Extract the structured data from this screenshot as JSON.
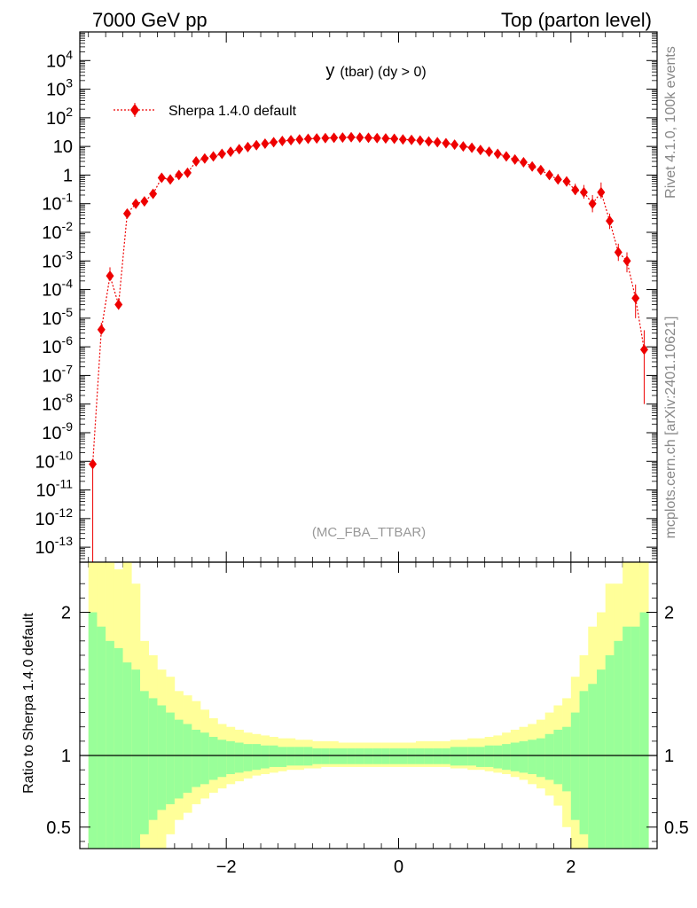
{
  "header": {
    "left": "7000 GeV pp",
    "right": "Top (parton level)"
  },
  "side_labels": {
    "rivet": "Rivet 4.1.0,  100k events",
    "mcplots": "mcplots.cern.ch [arXiv:2401.10621]"
  },
  "chart_data": [
    {
      "type": "scatter",
      "title_main": "y",
      "title_sub": "(tbar) (dy > 0)",
      "annotation": "(MC_FBA_TTBAR)",
      "ylog": true,
      "xlim": [
        -3.7,
        3.0
      ],
      "ylim": [
        3e-14,
        100000.0
      ],
      "legend": {
        "label": "Sherpa 1.4.0 default",
        "placement": "top-left",
        "color": "#ee0000"
      },
      "y_tick_labels": [
        "10^4",
        "10^3",
        "10^2",
        "10",
        "1",
        "10^-1",
        "10^-2",
        "10^-3",
        "10^-4",
        "10^-5",
        "10^-6",
        "10^-7",
        "10^-8",
        "10^-9",
        "10^-10",
        "10^-11",
        "10^-12",
        "10^-13"
      ],
      "series": [
        {
          "name": "Sherpa 1.4.0 default",
          "x": [
            -3.55,
            -3.45,
            -3.35,
            -3.25,
            -3.15,
            -3.05,
            -2.95,
            -2.85,
            -2.75,
            -2.65,
            -2.55,
            -2.45,
            -2.35,
            -2.25,
            -2.15,
            -2.05,
            -1.95,
            -1.85,
            -1.75,
            -1.65,
            -1.55,
            -1.45,
            -1.35,
            -1.25,
            -1.15,
            -1.05,
            -0.95,
            -0.85,
            -0.75,
            -0.65,
            -0.55,
            -0.45,
            -0.35,
            -0.25,
            -0.15,
            -0.05,
            0.05,
            0.15,
            0.25,
            0.35,
            0.45,
            0.55,
            0.65,
            0.75,
            0.85,
            0.95,
            1.05,
            1.15,
            1.25,
            1.35,
            1.45,
            1.55,
            1.65,
            1.75,
            1.85,
            1.95,
            2.05,
            2.15,
            2.25,
            2.35,
            2.45,
            2.55,
            2.65,
            2.75,
            2.85
          ],
          "y": [
            8e-11,
            4e-06,
            0.0003,
            3e-05,
            0.045,
            0.1,
            0.12,
            0.22,
            0.8,
            0.7,
            1.0,
            1.2,
            3.0,
            3.8,
            4.5,
            5.5,
            6.5,
            8.0,
            9.5,
            11,
            12.5,
            14,
            15.5,
            16.5,
            17.5,
            18.5,
            19,
            19.5,
            20,
            20.5,
            21,
            20.5,
            20,
            19.5,
            19,
            18.5,
            17.5,
            17,
            16,
            15,
            14,
            13,
            11.5,
            10,
            9,
            7.5,
            6.5,
            5.5,
            4.5,
            3.5,
            2.8,
            2.0,
            1.5,
            1.0,
            0.7,
            0.6,
            0.3,
            0.25,
            0.1,
            0.25,
            0.025,
            0.002,
            0.001,
            5e-05,
            8e-07
          ],
          "y_err_low": [
            0,
            1e-06,
            0.0001,
            1e-05,
            0.01,
            0.02,
            0.02,
            0.04,
            0.15,
            0.1,
            0.1,
            0.1,
            0.2,
            0.2,
            0.2,
            0.2,
            0.2,
            0.2,
            0.2,
            0.2,
            0.2,
            0.2,
            0.2,
            0.2,
            0.2,
            0.2,
            0.2,
            0.2,
            0.2,
            0.2,
            0.2,
            0.2,
            0.2,
            0.2,
            0.2,
            0.2,
            0.2,
            0.2,
            0.2,
            0.2,
            0.2,
            0.2,
            0.2,
            0.2,
            0.2,
            0.2,
            0.2,
            0.2,
            0.2,
            0.2,
            0.2,
            0.2,
            0.1,
            0.1,
            0.2,
            0.2,
            0.1,
            0.1,
            0.05,
            0.1,
            0.012,
            0.001,
            0.0006,
            4e-05,
            7.9e-07
          ],
          "y_err_high": [
            0,
            3e-06,
            0.0003,
            2e-05,
            0.02,
            0.04,
            0.04,
            0.06,
            0.25,
            0.15,
            0.15,
            0.15,
            0.3,
            0.3,
            0.3,
            0.3,
            0.3,
            0.3,
            0.3,
            0.3,
            0.3,
            0.3,
            0.3,
            0.3,
            0.3,
            0.3,
            0.3,
            0.3,
            0.3,
            0.3,
            0.3,
            0.3,
            0.3,
            0.3,
            0.3,
            0.3,
            0.3,
            0.3,
            0.3,
            0.3,
            0.3,
            0.3,
            0.3,
            0.3,
            0.3,
            0.3,
            0.3,
            0.3,
            0.3,
            0.3,
            0.3,
            0.3,
            0.2,
            0.2,
            0.4,
            0.3,
            0.2,
            0.2,
            0.1,
            0.3,
            0.02,
            0.002,
            0.001,
            0.0001,
            3e-06
          ]
        }
      ]
    },
    {
      "type": "area",
      "ylabel": "Ratio to Sherpa 1.4.0 default",
      "xlim": [
        -3.7,
        3.0
      ],
      "ylim": [
        0.35,
        2.35
      ],
      "reference_line": 1,
      "x_tick_labels": [
        "−2",
        "0",
        "2"
      ],
      "x_ticks": [
        -2,
        0,
        2
      ],
      "y_tick_labels": [
        "2",
        "1",
        "0.5"
      ],
      "y_ticks": [
        2,
        1,
        0.5
      ],
      "bands": {
        "inner_color": "#99ff99",
        "outer_color": "#ffff99"
      },
      "x_edges": [
        -3.6,
        -3.5,
        -3.4,
        -3.3,
        -3.2,
        -3.1,
        -3.0,
        -2.9,
        -2.8,
        -2.7,
        -2.6,
        -2.5,
        -2.4,
        -2.3,
        -2.2,
        -2.1,
        -2.0,
        -1.9,
        -1.8,
        -1.7,
        -1.6,
        -1.5,
        -1.4,
        -1.3,
        -1.2,
        -1.1,
        -1.0,
        -0.9,
        -0.8,
        -0.7,
        -0.6,
        -0.5,
        -0.4,
        -0.3,
        -0.2,
        -0.1,
        0.0,
        0.1,
        0.2,
        0.3,
        0.4,
        0.5,
        0.6,
        0.7,
        0.8,
        0.9,
        1.0,
        1.1,
        1.2,
        1.3,
        1.4,
        1.5,
        1.6,
        1.7,
        1.8,
        1.9,
        2.0,
        2.1,
        2.2,
        2.3,
        2.4,
        2.5,
        2.6,
        2.7,
        2.8,
        2.9
      ],
      "outer_high": [
        2.4,
        2.4,
        2.4,
        2.3,
        2.4,
        2.2,
        1.8,
        1.7,
        1.6,
        1.55,
        1.45,
        1.42,
        1.38,
        1.32,
        1.26,
        1.22,
        1.2,
        1.18,
        1.16,
        1.15,
        1.14,
        1.13,
        1.12,
        1.12,
        1.11,
        1.11,
        1.1,
        1.1,
        1.1,
        1.09,
        1.09,
        1.09,
        1.09,
        1.09,
        1.09,
        1.09,
        1.09,
        1.09,
        1.1,
        1.1,
        1.1,
        1.1,
        1.11,
        1.11,
        1.12,
        1.12,
        1.13,
        1.14,
        1.16,
        1.18,
        1.2,
        1.22,
        1.25,
        1.3,
        1.35,
        1.4,
        1.55,
        1.7,
        1.9,
        2.0,
        2.2,
        2.2,
        2.4,
        2.4,
        2.4
      ],
      "inner_high": [
        2.0,
        1.9,
        1.8,
        1.75,
        1.65,
        1.6,
        1.45,
        1.4,
        1.35,
        1.3,
        1.25,
        1.22,
        1.18,
        1.16,
        1.13,
        1.11,
        1.1,
        1.09,
        1.08,
        1.08,
        1.07,
        1.07,
        1.06,
        1.06,
        1.06,
        1.06,
        1.05,
        1.05,
        1.05,
        1.05,
        1.05,
        1.05,
        1.05,
        1.05,
        1.05,
        1.05,
        1.05,
        1.05,
        1.05,
        1.05,
        1.05,
        1.05,
        1.06,
        1.06,
        1.06,
        1.06,
        1.07,
        1.07,
        1.08,
        1.09,
        1.1,
        1.11,
        1.12,
        1.15,
        1.18,
        1.2,
        1.3,
        1.45,
        1.5,
        1.6,
        1.7,
        1.8,
        1.9,
        1.9,
        2.0
      ],
      "inner_low": [
        0.3,
        0.3,
        0.3,
        0.3,
        0.3,
        0.3,
        0.45,
        0.55,
        0.62,
        0.66,
        0.7,
        0.74,
        0.78,
        0.8,
        0.83,
        0.85,
        0.87,
        0.88,
        0.89,
        0.9,
        0.91,
        0.92,
        0.92,
        0.93,
        0.93,
        0.93,
        0.94,
        0.94,
        0.94,
        0.94,
        0.94,
        0.94,
        0.94,
        0.94,
        0.94,
        0.94,
        0.94,
        0.94,
        0.94,
        0.94,
        0.94,
        0.94,
        0.93,
        0.93,
        0.93,
        0.92,
        0.92,
        0.91,
        0.9,
        0.89,
        0.88,
        0.87,
        0.85,
        0.83,
        0.8,
        0.75,
        0.55,
        0.45,
        0.35,
        0.3,
        0.3,
        0.3,
        0.3,
        0.3,
        0.3
      ],
      "outer_low": [
        0.3,
        0.3,
        0.3,
        0.3,
        0.3,
        0.3,
        0.3,
        0.3,
        0.35,
        0.45,
        0.55,
        0.6,
        0.66,
        0.7,
        0.74,
        0.77,
        0.8,
        0.82,
        0.84,
        0.86,
        0.87,
        0.88,
        0.89,
        0.9,
        0.9,
        0.91,
        0.91,
        0.92,
        0.92,
        0.92,
        0.92,
        0.92,
        0.92,
        0.92,
        0.92,
        0.92,
        0.92,
        0.92,
        0.92,
        0.92,
        0.92,
        0.92,
        0.91,
        0.91,
        0.9,
        0.9,
        0.89,
        0.88,
        0.87,
        0.85,
        0.83,
        0.8,
        0.77,
        0.72,
        0.65,
        0.5,
        0.3,
        0.3,
        0.3,
        0.3,
        0.3,
        0.3,
        0.3,
        0.3,
        0.3
      ]
    }
  ]
}
